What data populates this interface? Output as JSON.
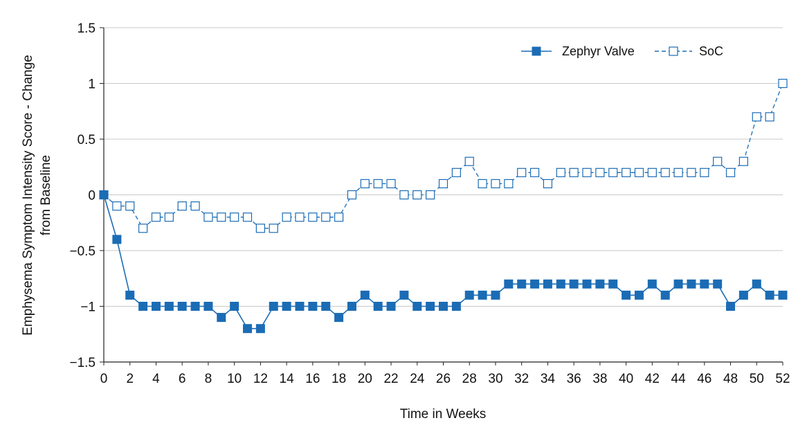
{
  "chart_data": {
    "type": "line",
    "xlabel": "Time in Weeks",
    "ylabel_lines": [
      "Emphysema Symptom Intensity Score - Change",
      "from Baseline"
    ],
    "xlim": [
      0,
      52
    ],
    "ylim": [
      -1.5,
      1.5
    ],
    "xticks": [
      0,
      2,
      4,
      6,
      8,
      10,
      12,
      14,
      16,
      18,
      20,
      22,
      24,
      26,
      28,
      30,
      32,
      34,
      36,
      38,
      40,
      42,
      44,
      46,
      48,
      50,
      52
    ],
    "yticks": [
      -1.5,
      -1,
      -0.5,
      0,
      0.5,
      1,
      1.5
    ],
    "ytick_labels": [
      "−1.5",
      "−1",
      "−0.5",
      "0",
      "0.5",
      "1",
      "1.5"
    ],
    "grid": "horizontal",
    "legend_position": "top-right",
    "x": [
      0,
      1,
      2,
      3,
      4,
      5,
      6,
      7,
      8,
      9,
      10,
      11,
      12,
      13,
      14,
      15,
      16,
      17,
      18,
      19,
      20,
      21,
      22,
      23,
      24,
      25,
      26,
      27,
      28,
      29,
      30,
      31,
      32,
      33,
      34,
      35,
      36,
      37,
      38,
      39,
      40,
      41,
      42,
      43,
      44,
      45,
      46,
      47,
      48,
      49,
      50,
      51,
      52
    ],
    "series": [
      {
        "name": "Zephyr Valve",
        "color": "#1b6cb5",
        "marker": "filled-square",
        "line_style": "solid",
        "values": [
          0,
          -0.4,
          -0.9,
          -1,
          -1,
          -1,
          -1,
          -1,
          -1,
          -1.1,
          -1,
          -1.2,
          -1.2,
          -1,
          -1,
          -1,
          -1,
          -1,
          -1.1,
          -1,
          -0.9,
          -1,
          -1,
          -0.9,
          -1,
          -1,
          -1,
          -1,
          -0.9,
          -0.9,
          -0.9,
          -0.8,
          -0.8,
          -0.8,
          -0.8,
          -0.8,
          -0.8,
          -0.8,
          -0.8,
          -0.8,
          -0.9,
          -0.9,
          -0.8,
          -0.9,
          -0.8,
          -0.8,
          -0.8,
          -0.8,
          -1,
          -0.9,
          -0.8,
          -0.9,
          -0.9
        ]
      },
      {
        "name": "SoC",
        "color": "#1b6cb5",
        "marker": "open-square",
        "line_style": "dashed",
        "values": [
          0,
          -0.1,
          -0.1,
          -0.3,
          -0.2,
          -0.2,
          -0.1,
          -0.1,
          -0.2,
          -0.2,
          -0.2,
          -0.2,
          -0.3,
          -0.3,
          -0.2,
          -0.2,
          -0.2,
          -0.2,
          -0.2,
          0,
          0.1,
          0.1,
          0.1,
          0,
          0,
          0,
          0.1,
          0.2,
          0.3,
          0.1,
          0.1,
          0.1,
          0.2,
          0.2,
          0.1,
          0.2,
          0.2,
          0.2,
          0.2,
          0.2,
          0.2,
          0.2,
          0.2,
          0.2,
          0.2,
          0.2,
          0.2,
          0.3,
          0.2,
          0.3,
          0.7,
          0.7,
          1
        ]
      }
    ]
  }
}
